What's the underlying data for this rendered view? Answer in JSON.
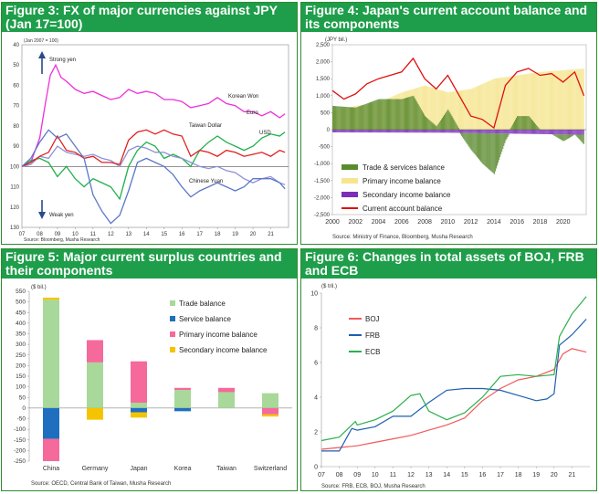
{
  "panels": [
    {
      "title": "Figure 3: FX of major currencies against JPY (Jan 17=100)"
    },
    {
      "title": "Figure 4: Japan's current account balance and its components"
    },
    {
      "title": "Figure 5: Major current surplus countries and their components"
    },
    {
      "title": "Figure 6: Changes in total assets of BOJ, FRB and ECB"
    }
  ],
  "chart_data": [
    {
      "type": "line",
      "title": "Figure 3: FX of major currencies against JPY (Jan 17=100)",
      "subtitle": "(Jan 2007 = 100)",
      "y_inverted": true,
      "ylim": [
        130,
        40
      ],
      "yticks": [
        40,
        50,
        60,
        70,
        80,
        90,
        100,
        110,
        120,
        130
      ],
      "xticks": [
        "07",
        "08",
        "09",
        "10",
        "11",
        "12",
        "13",
        "14",
        "15",
        "16",
        "17",
        "18",
        "19",
        "20",
        "21"
      ],
      "x_range": [
        2007,
        2022
      ],
      "reference_line": 100,
      "annotations": {
        "strong": "Strong yen",
        "weak": "Weak yen"
      },
      "source": "Source: Bloomberg, Musha Research",
      "series": [
        {
          "name": "Korean Won",
          "color": "#ee2ed8",
          "x": [
            2007,
            2007.5,
            2008,
            2008.3,
            2008.6,
            2008.9,
            2009.2,
            2009.5,
            2010,
            2010.5,
            2011,
            2011.5,
            2012,
            2012.5,
            2013,
            2013.5,
            2014,
            2014.5,
            2015,
            2015.5,
            2016,
            2016.5,
            2017,
            2017.5,
            2018,
            2018.5,
            2019,
            2019.5,
            2020,
            2020.5,
            2021,
            2021.5,
            2021.8
          ],
          "y": [
            100,
            98,
            86,
            70,
            55,
            50,
            56,
            58,
            62,
            64,
            63,
            65,
            67,
            66,
            62,
            64,
            63,
            64,
            67,
            67,
            68,
            71,
            70,
            69,
            66,
            69,
            70,
            73,
            73,
            75,
            73,
            76,
            74
          ]
        },
        {
          "name": "Euro",
          "color": "#1fb04a",
          "x": [
            2007,
            2007.5,
            2008,
            2008.5,
            2009,
            2009.5,
            2010,
            2010.5,
            2011,
            2011.5,
            2012,
            2012.5,
            2013,
            2013.5,
            2014,
            2014.5,
            2015,
            2015.5,
            2016,
            2016.5,
            2017,
            2017.5,
            2018,
            2018.5,
            2019,
            2019.5,
            2020,
            2020.5,
            2021,
            2021.5,
            2021.8
          ],
          "y": [
            100,
            97,
            96,
            98,
            105,
            100,
            106,
            110,
            106,
            108,
            110,
            116,
            100,
            92,
            88,
            90,
            96,
            94,
            96,
            100,
            92,
            88,
            85,
            88,
            90,
            92,
            90,
            86,
            84,
            85,
            83
          ]
        },
        {
          "name": "Taiwan Dollar",
          "color": "#9090d8",
          "x": [
            2007,
            2007.5,
            2008,
            2008.5,
            2009,
            2009.5,
            2010,
            2010.5,
            2011,
            2011.5,
            2012,
            2012.5,
            2013,
            2013.5,
            2014,
            2014.5,
            2015,
            2015.5,
            2016,
            2016.5,
            2017,
            2017.5,
            2018,
            2018.5,
            2019,
            2019.5,
            2020,
            2020.5,
            2021,
            2021.5,
            2021.8
          ],
          "y": [
            100,
            99,
            95,
            96,
            90,
            93,
            94,
            95,
            94,
            96,
            97,
            100,
            92,
            90,
            91,
            93,
            93,
            95,
            96,
            98,
            100,
            101,
            100,
            102,
            103,
            106,
            108,
            106,
            105,
            108,
            109
          ]
        },
        {
          "name": "USD",
          "color": "#e02020",
          "x": [
            2007,
            2007.5,
            2008,
            2008.5,
            2009,
            2009.5,
            2010,
            2010.5,
            2011,
            2011.5,
            2012,
            2012.5,
            2013,
            2013.5,
            2014,
            2014.5,
            2015,
            2015.5,
            2016,
            2016.5,
            2017,
            2017.5,
            2018,
            2018.5,
            2019,
            2019.5,
            2020,
            2020.5,
            2021,
            2021.5,
            2021.8
          ],
          "y": [
            100,
            98,
            95,
            93,
            85,
            92,
            93,
            96,
            95,
            98,
            98,
            99,
            87,
            83,
            82,
            84,
            82,
            84,
            85,
            95,
            92,
            93,
            95,
            92,
            93,
            95,
            94,
            93,
            95,
            92,
            93
          ]
        },
        {
          "name": "Chinese Yuan",
          "color": "#5b78c8",
          "x": [
            2007,
            2007.5,
            2008,
            2008.5,
            2009,
            2009.5,
            2010,
            2010.5,
            2011,
            2011.5,
            2012,
            2012.5,
            2013,
            2013.5,
            2014,
            2014.5,
            2015,
            2015.5,
            2016,
            2016.5,
            2017,
            2017.5,
            2018,
            2018.5,
            2019,
            2019.5,
            2020,
            2020.5,
            2021,
            2021.5,
            2021.8
          ],
          "y": [
            100,
            96,
            88,
            82,
            86,
            84,
            90,
            96,
            114,
            122,
            128,
            124,
            112,
            98,
            96,
            98,
            100,
            104,
            110,
            115,
            112,
            110,
            108,
            110,
            112,
            110,
            106,
            106,
            106,
            108,
            111
          ]
        }
      ]
    },
    {
      "type": "bar",
      "title": "Figure 4: Japan's current account balance and its components",
      "ylabel": "(JPY bil.)",
      "ylim": [
        -2500,
        2500
      ],
      "yticks": [
        -2500,
        -2000,
        -1500,
        -1000,
        -500,
        0,
        500,
        1000,
        1500,
        2000,
        2500
      ],
      "ytick_labels": [
        "-2,500",
        "-2,000",
        "-1,500",
        "-1,000",
        "-500",
        "0",
        "500",
        "1,000",
        "1,500",
        "2,000",
        "2,500"
      ],
      "xticks": [
        "2000",
        "2002",
        "2004",
        "2006",
        "2008",
        "2010",
        "2012",
        "2014",
        "2016",
        "2018",
        "2020"
      ],
      "x_range": [
        2000,
        2022
      ],
      "source": "Source: Ministry of Finance, Bloomberg, Musha Research",
      "series": [
        {
          "name": "Trade & services balance",
          "color": "#5a8a2e",
          "x": [
            2000,
            2002,
            2004,
            2006,
            2007,
            2008,
            2009,
            2010,
            2011,
            2012,
            2013,
            2014,
            2015,
            2016,
            2017,
            2018,
            2019,
            2020,
            2021,
            2021.8
          ],
          "y": [
            700,
            650,
            900,
            900,
            1000,
            400,
            100,
            600,
            0,
            -500,
            -900,
            -1200,
            -200,
            400,
            400,
            0,
            0,
            -200,
            0,
            -300
          ]
        },
        {
          "name": "Primary income balance",
          "color": "#f5e58e",
          "x": [
            2000,
            2002,
            2004,
            2006,
            2008,
            2010,
            2012,
            2014,
            2016,
            2018,
            2020,
            2021.8
          ],
          "y": [
            550,
            700,
            800,
            1100,
            1300,
            1100,
            1200,
            1500,
            1600,
            1700,
            1750,
            1800
          ]
        },
        {
          "name": "Secondary income balance",
          "color": "#7a2fb8",
          "x": [
            2000,
            2010,
            2021.8
          ],
          "y": [
            -80,
            -90,
            -150
          ]
        },
        {
          "name": "Current account balance",
          "color": "#e01010",
          "x": [
            2000,
            2001,
            2002,
            2003,
            2004,
            2005,
            2006,
            2007,
            2008,
            2009,
            2010,
            2011,
            2012,
            2013,
            2014,
            2015,
            2016,
            2017,
            2018,
            2019,
            2020,
            2021,
            2021.8
          ],
          "y": [
            1150,
            900,
            1050,
            1350,
            1500,
            1600,
            1700,
            2100,
            1500,
            1200,
            1600,
            1000,
            400,
            300,
            50,
            1300,
            1700,
            1800,
            1600,
            1650,
            1400,
            1700,
            1000
          ]
        }
      ]
    },
    {
      "type": "bar",
      "title": "Figure 5: Major current surplus countries and their components",
      "ylabel": "($ bil.)",
      "ylim": [
        -250,
        550
      ],
      "yticks": [
        -250,
        -200,
        -150,
        -100,
        -50,
        0,
        50,
        100,
        150,
        200,
        250,
        300,
        350,
        400,
        450,
        500,
        550
      ],
      "categories": [
        "China",
        "Germany",
        "Japan",
        "Korea",
        "Taiwan",
        "Switzerland"
      ],
      "source": "Source: OECD, Central Bank of Taiwan, Musha Research",
      "series": [
        {
          "name": "Trade balance",
          "color": "#a8d89a",
          "values": [
            510,
            215,
            25,
            85,
            75,
            70
          ]
        },
        {
          "name": "Service balance",
          "color": "#1f6fc0",
          "values": [
            -145,
            0,
            -20,
            -15,
            0,
            0
          ]
        },
        {
          "name": "Primary income balance",
          "color": "#f56a9a",
          "values": [
            -105,
            105,
            195,
            10,
            20,
            -30
          ]
        },
        {
          "name": "Secondary income balance",
          "color": "#f5c400",
          "values": [
            10,
            -55,
            -25,
            0,
            0,
            -10
          ]
        }
      ]
    },
    {
      "type": "line",
      "title": "Figure 6: Changes in total assets of BOJ, FRB and ECB",
      "ylabel": "($ tril.)",
      "ylim": [
        0,
        10
      ],
      "yticks": [
        0,
        2,
        4,
        6,
        8,
        10
      ],
      "xticks": [
        "07",
        "08",
        "09",
        "10",
        "11",
        "12",
        "13",
        "14",
        "15",
        "16",
        "17",
        "18",
        "19",
        "20",
        "21"
      ],
      "x_range": [
        2007,
        2022
      ],
      "source": "Source: FRB, ECB, BOJ, Musha Research",
      "series": [
        {
          "name": "BOJ",
          "color": "#f05a5a",
          "x": [
            2007,
            2008,
            2009,
            2010,
            2011,
            2012,
            2013,
            2014,
            2015,
            2016,
            2017,
            2018,
            2019,
            2020,
            2020.5,
            2021,
            2021.8
          ],
          "y": [
            1.0,
            1.1,
            1.2,
            1.4,
            1.6,
            1.8,
            2.1,
            2.4,
            2.8,
            3.8,
            4.5,
            5.0,
            5.2,
            5.6,
            6.5,
            6.8,
            6.6
          ]
        },
        {
          "name": "FRB",
          "color": "#1e5fb0",
          "x": [
            2007,
            2008,
            2008.7,
            2009,
            2010,
            2011,
            2012,
            2013,
            2014,
            2015,
            2016,
            2017,
            2018,
            2019,
            2019.6,
            2020,
            2020.3,
            2021,
            2021.8
          ],
          "y": [
            0.9,
            0.9,
            2.2,
            2.1,
            2.3,
            2.9,
            2.9,
            3.7,
            4.4,
            4.5,
            4.5,
            4.4,
            4.1,
            3.8,
            3.9,
            4.2,
            7.0,
            7.6,
            8.5
          ]
        },
        {
          "name": "ECB",
          "color": "#2ab04a",
          "x": [
            2007,
            2008,
            2008.9,
            2009,
            2010,
            2011,
            2012,
            2012.5,
            2013,
            2014,
            2015,
            2016,
            2017,
            2018,
            2019,
            2020,
            2020.3,
            2021,
            2021.8
          ],
          "y": [
            1.5,
            1.7,
            2.6,
            2.4,
            2.7,
            3.2,
            4.1,
            4.2,
            3.2,
            2.7,
            3.1,
            4.0,
            5.2,
            5.3,
            5.2,
            5.3,
            7.5,
            8.8,
            9.8
          ]
        }
      ]
    }
  ]
}
